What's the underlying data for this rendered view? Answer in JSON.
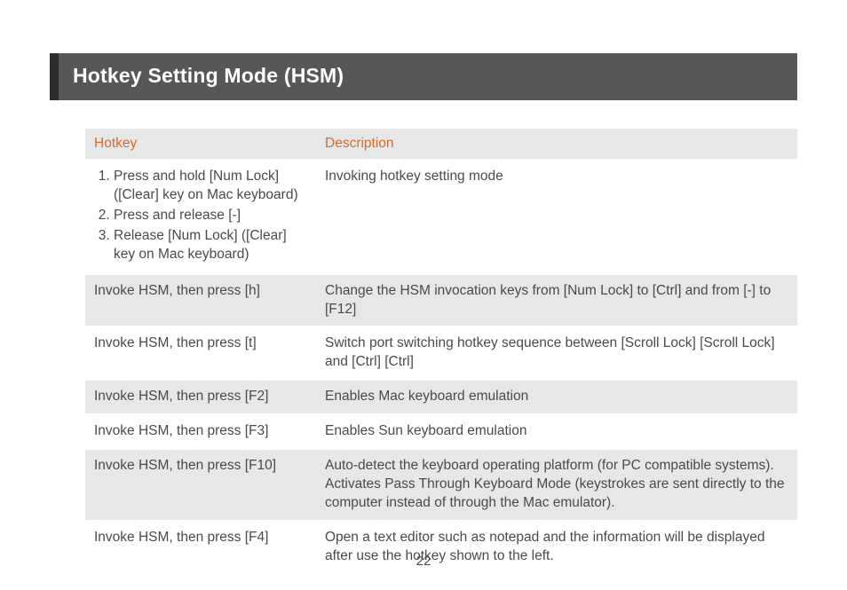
{
  "title": "Hotkey Setting Mode (HSM)",
  "page_number": "22",
  "columns": {
    "hotkey": "Hotkey",
    "description": "Description"
  },
  "rows": [
    {
      "type": "list",
      "shade": false,
      "steps": [
        "Press and hold [Num Lock] ([Clear] key on Mac keyboard)",
        "Press and release [-]",
        "Release [Num Lock] ([Clear] key on Mac keyboard)"
      ],
      "description": "Invoking hotkey setting mode"
    },
    {
      "type": "text",
      "shade": true,
      "hotkey": "Invoke HSM, then press [h]",
      "description": "Change the HSM invocation keys from [Num Lock] to [Ctrl] and from [-] to [F12]"
    },
    {
      "type": "text",
      "shade": false,
      "hotkey": "Invoke HSM, then press [t]",
      "description": "Switch port switching hotkey sequence between [Scroll Lock] [Scroll Lock] and [Ctrl] [Ctrl]"
    },
    {
      "type": "text",
      "shade": true,
      "hotkey": "Invoke HSM, then press [F2]",
      "description": "Enables Mac keyboard emulation"
    },
    {
      "type": "text",
      "shade": false,
      "hotkey": "Invoke HSM, then press [F3]",
      "description": "Enables Sun keyboard emulation"
    },
    {
      "type": "text",
      "shade": true,
      "hotkey": "Invoke HSM, then press [F10]",
      "description": "Auto-detect the keyboard operating platform (for PC compatible systems). Activates Pass Through Keyboard Mode (keystrokes are sent directly to the computer instead of through the Mac emulator)."
    },
    {
      "type": "text",
      "shade": false,
      "hotkey": "Invoke HSM, then press [F4]",
      "description": "Open a text editor such as notepad and the information will be displayed after use the hotkey shown to the left."
    }
  ],
  "styling": {
    "title_bar_bg": "#575757",
    "title_bar_accent": "#2d2d2d",
    "title_color": "#ffffff",
    "header_text_color": "#d36a2a",
    "shade_bg": "#e7e7e7",
    "body_text_color": "#4a4a4a",
    "font_size_title": 23,
    "font_size_body": 15.5
  }
}
